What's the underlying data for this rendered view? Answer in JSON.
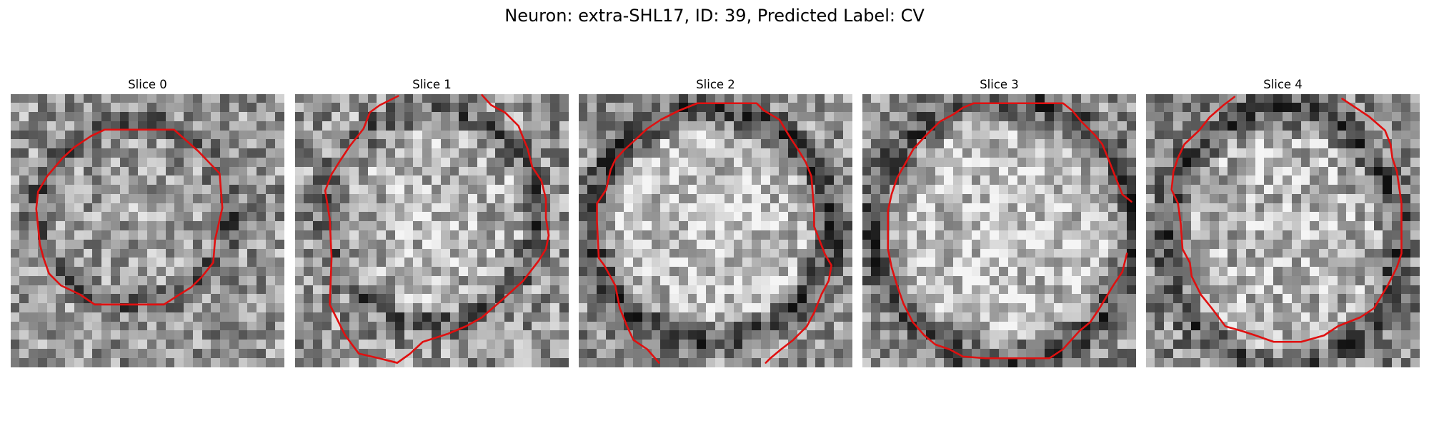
{
  "figure": {
    "title": "Neuron: extra-SHL17, ID: 39, Predicted Label: CV"
  },
  "panels": [
    {
      "title": "Slice 0"
    },
    {
      "title": "Slice 1"
    },
    {
      "title": "Slice 2"
    },
    {
      "title": "Slice 3"
    },
    {
      "title": "Slice 4"
    }
  ],
  "colors": {
    "background": "#ffffff",
    "contour": "#e01010",
    "image_colormap": "gray"
  }
}
